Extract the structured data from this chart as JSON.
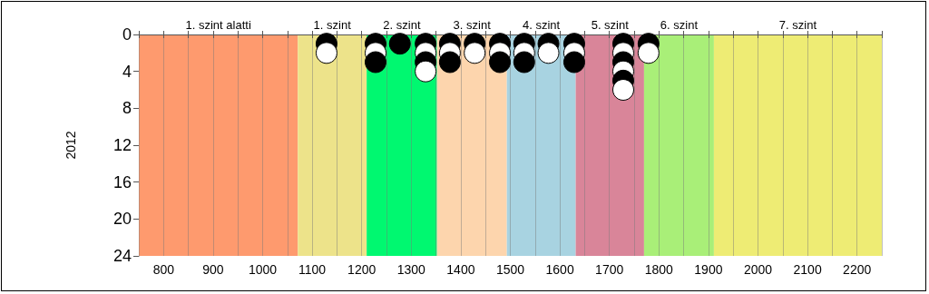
{
  "chart_data": {
    "type": "scatter",
    "ylabel": "2012",
    "xlim": [
      750,
      2250
    ],
    "xticks": [
      {
        "value": 750,
        "label": null
      },
      800,
      {
        "value": 850,
        "label": null
      },
      900,
      {
        "value": 950,
        "label": null
      },
      1000,
      {
        "value": 1050,
        "label": null
      },
      1100,
      {
        "value": 1150,
        "label": null
      },
      1200,
      {
        "value": 1250,
        "label": null
      },
      1300,
      {
        "value": 1350,
        "label": null
      },
      1400,
      {
        "value": 1450,
        "label": null
      },
      1500,
      {
        "value": 1550,
        "label": null
      },
      1600,
      {
        "value": 1650,
        "label": null
      },
      1700,
      {
        "value": 1750,
        "label": null
      },
      1800,
      {
        "value": 1850,
        "label": null
      },
      1900,
      {
        "value": 1950,
        "label": null
      },
      2000,
      {
        "value": 2050,
        "label": null
      },
      2100,
      {
        "value": 2150,
        "label": null
      },
      2200,
      {
        "value": 2250,
        "label": null
      }
    ],
    "ylim": [
      24,
      0
    ],
    "yticks": [
      0,
      4,
      8,
      12,
      16,
      20,
      24
    ],
    "grid": "x",
    "marker": "circle",
    "bands": [
      {
        "axis": "x",
        "from": 750,
        "to": 1071,
        "label": "1. szint alatti",
        "color": "#fe9a6e"
      },
      {
        "axis": "x",
        "from": 1071,
        "to": 1210,
        "label": "1. szint",
        "color": "#ede38a"
      },
      {
        "axis": "x",
        "from": 1210,
        "to": 1352,
        "label": "2. szint",
        "color": "#00f870"
      },
      {
        "axis": "x",
        "from": 1352,
        "to": 1493,
        "label": "3. szint",
        "color": "#fdd5ad"
      },
      {
        "axis": "x",
        "from": 1493,
        "to": 1632,
        "label": "4. szint",
        "color": "#a8d3e1"
      },
      {
        "axis": "x",
        "from": 1632,
        "to": 1770,
        "label": "5. szint",
        "color": "#d98599"
      },
      {
        "axis": "x",
        "from": 1770,
        "to": 1911,
        "label": "6. szint",
        "color": "#a9ef78"
      },
      {
        "axis": "x",
        "from": 1911,
        "to": 2250,
        "label": "7. szint",
        "color": "#eeec74"
      }
    ],
    "series": [
      {
        "x": [
          1129,
          1228,
          1277,
          1329,
          1378,
          1428,
          1479,
          1528,
          1577,
          1629,
          1728,
          1779,
          1129,
          1228,
          1329,
          1378,
          1428,
          1479,
          1528,
          1577,
          1629,
          1728,
          1779,
          1228,
          1329,
          1378,
          1479,
          1528,
          1629,
          1728,
          1329,
          1728,
          1728,
          1728
        ],
        "values": [
          1,
          1,
          1,
          1,
          1,
          1,
          1,
          1,
          1,
          1,
          1,
          1,
          2,
          2,
          2,
          2,
          2,
          2,
          2,
          2,
          2,
          2,
          2,
          3,
          3,
          3,
          3,
          3,
          3,
          3,
          4,
          4,
          5,
          6
        ],
        "colors": [
          "#000000",
          "#000000",
          "#000000",
          "#000000",
          "#000000",
          "#000000",
          "#000000",
          "#000000",
          "#000000",
          "#000000",
          "#000000",
          "#000000",
          "#ffffff",
          "#ffffff",
          "#ffffff",
          "#ffffff",
          "#ffffff",
          "#ffffff",
          "#ffffff",
          "#ffffff",
          "#ffffff",
          "#ffffff",
          "#ffffff",
          "#000000",
          "#000000",
          "#000000",
          "#000000",
          "#000000",
          "#000000",
          "#000000",
          "#ffffff",
          "#ffffff",
          "#000000",
          "#ffffff"
        ]
      }
    ]
  }
}
